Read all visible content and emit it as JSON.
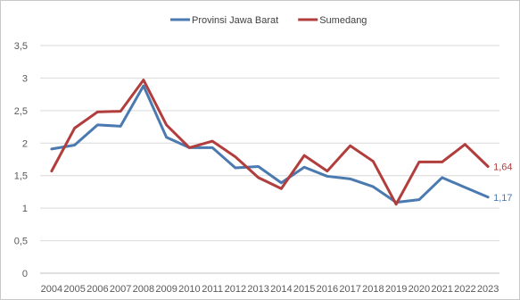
{
  "chart_data": {
    "type": "line",
    "categories": [
      "2004",
      "2005",
      "2006",
      "2007",
      "2008",
      "2009",
      "2010",
      "2011",
      "2012",
      "2013",
      "2014",
      "2015",
      "2016",
      "2017",
      "2018",
      "2019",
      "2020",
      "2021",
      "2022",
      "2023"
    ],
    "ylim": [
      0,
      3.5
    ],
    "yticks": [
      "0",
      "0,5",
      "1",
      "1,5",
      "2",
      "2,5",
      "3",
      "3,5"
    ],
    "grid": true,
    "legend_position": "top-center",
    "series": [
      {
        "name": "Provinsi Jawa Barat",
        "color": "#4a7ab0",
        "values": [
          1.91,
          1.97,
          2.28,
          2.26,
          2.88,
          2.09,
          1.93,
          1.93,
          1.62,
          1.64,
          1.39,
          1.63,
          1.49,
          1.45,
          1.33,
          1.09,
          1.13,
          1.47,
          1.32,
          1.17
        ],
        "end_label": "1,17"
      },
      {
        "name": "Sumedang",
        "color": "#b13d3d",
        "values": [
          1.57,
          2.23,
          2.48,
          2.49,
          2.97,
          2.28,
          1.93,
          2.03,
          1.79,
          1.47,
          1.3,
          1.81,
          1.57,
          1.96,
          1.72,
          1.06,
          1.71,
          1.71,
          1.98,
          1.64
        ],
        "end_label": "1,64"
      }
    ]
  }
}
